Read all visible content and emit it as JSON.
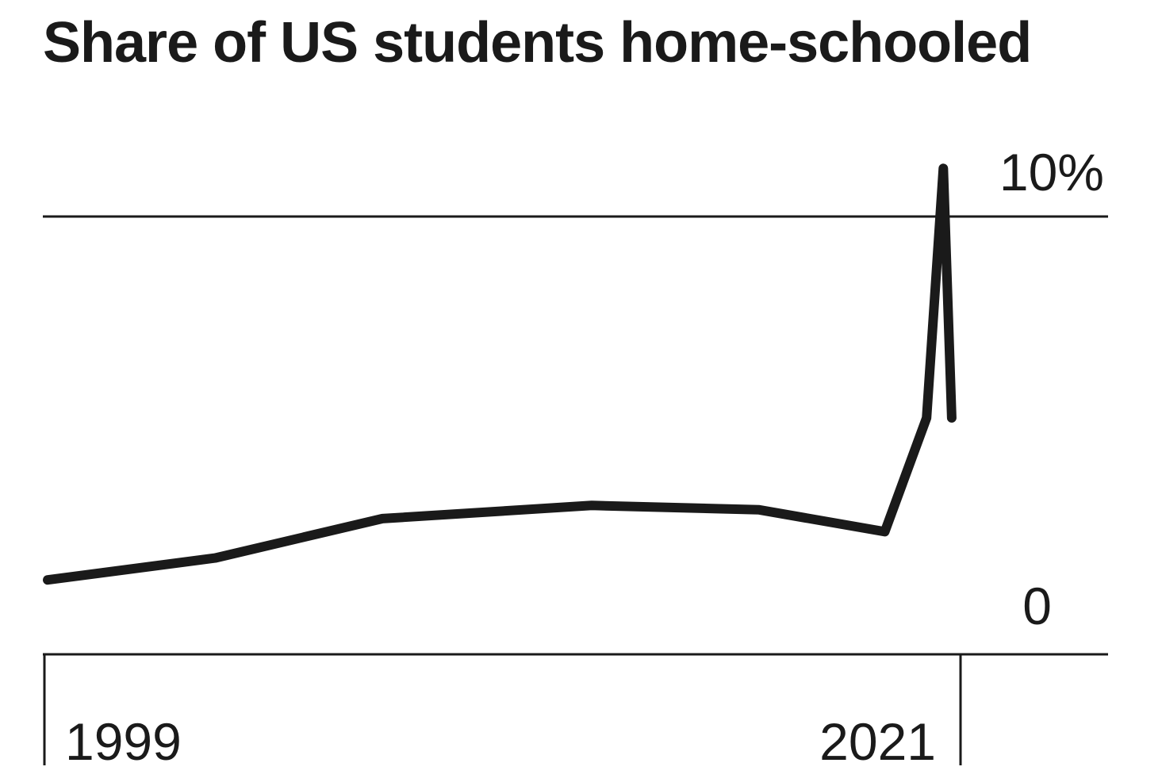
{
  "chart_data": {
    "type": "line",
    "title": "Share of US students home-schooled",
    "xlabel": "",
    "ylabel": "",
    "x": [
      1999,
      2003,
      2007,
      2012,
      2016,
      2019,
      2020,
      2020.4,
      2020.6
    ],
    "series": [
      {
        "values": [
          1.7,
          2.2,
          3.1,
          3.4,
          3.3,
          2.8,
          5.4,
          11.1,
          5.4
        ],
        "color": "#1a1a1a"
      }
    ],
    "xlim": [
      1999,
      2021
    ],
    "ylim": [
      0,
      10
    ],
    "x_tick_labels": [
      "1999",
      "2021"
    ],
    "y_tick_labels": [
      "0",
      "10%"
    ],
    "grid": "horizontal line at 10%",
    "legend": "none"
  }
}
